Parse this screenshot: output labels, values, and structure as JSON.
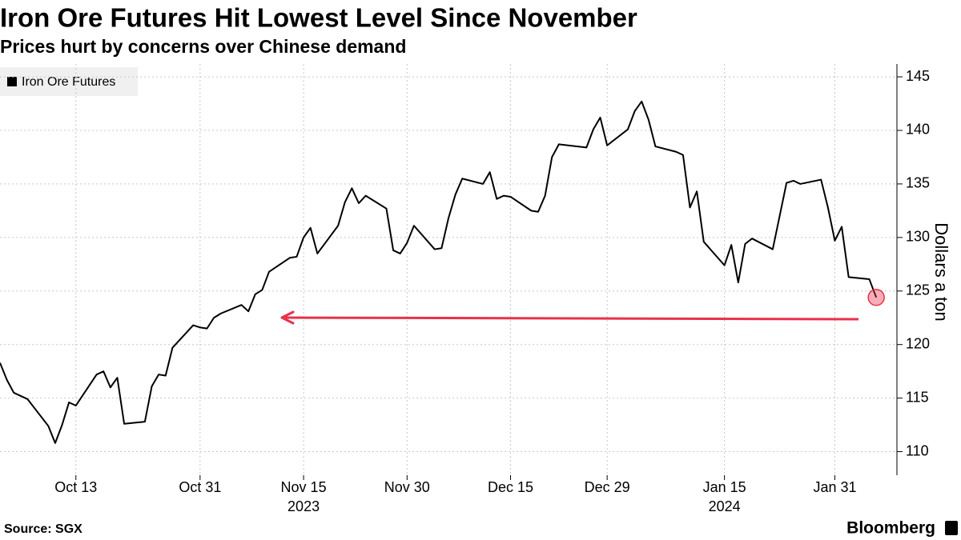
{
  "chart_data": {
    "type": "line",
    "title": "Iron Ore Futures Hit Lowest Level Since November",
    "subtitle": "Prices hurt by concerns over Chinese demand",
    "y_label": "Dollars a ton",
    "source": "Source: SGX",
    "brand": "Bloomberg",
    "x": [
      "2023-10-02",
      "2023-10-03",
      "2023-10-04",
      "2023-10-05",
      "2023-10-06",
      "2023-10-09",
      "2023-10-10",
      "2023-10-11",
      "2023-10-12",
      "2023-10-13",
      "2023-10-16",
      "2023-10-17",
      "2023-10-18",
      "2023-10-19",
      "2023-10-20",
      "2023-10-23",
      "2023-10-24",
      "2023-10-25",
      "2023-10-26",
      "2023-10-27",
      "2023-10-30",
      "2023-10-31",
      "2023-11-01",
      "2023-11-02",
      "2023-11-03",
      "2023-11-06",
      "2023-11-07",
      "2023-11-08",
      "2023-11-09",
      "2023-11-10",
      "2023-11-13",
      "2023-11-14",
      "2023-11-15",
      "2023-11-16",
      "2023-11-17",
      "2023-11-20",
      "2023-11-21",
      "2023-11-22",
      "2023-11-23",
      "2023-11-24",
      "2023-11-27",
      "2023-11-28",
      "2023-11-29",
      "2023-11-30",
      "2023-12-01",
      "2023-12-04",
      "2023-12-05",
      "2023-12-06",
      "2023-12-07",
      "2023-12-08",
      "2023-12-11",
      "2023-12-12",
      "2023-12-13",
      "2023-12-14",
      "2023-12-15",
      "2023-12-18",
      "2023-12-19",
      "2023-12-20",
      "2023-12-21",
      "2023-12-22",
      "2023-12-26",
      "2023-12-27",
      "2023-12-28",
      "2023-12-29",
      "2024-01-01",
      "2024-01-02",
      "2024-01-03",
      "2024-01-04",
      "2024-01-05",
      "2024-01-08",
      "2024-01-09",
      "2024-01-10",
      "2024-01-11",
      "2024-01-12",
      "2024-01-15",
      "2024-01-16",
      "2024-01-17",
      "2024-01-18",
      "2024-01-19",
      "2024-01-22",
      "2024-01-23",
      "2024-01-24",
      "2024-01-25",
      "2024-01-26",
      "2024-01-29",
      "2024-01-30",
      "2024-01-31",
      "2024-02-01",
      "2024-02-02",
      "2024-02-05",
      "2024-02-06"
    ],
    "series": [
      {
        "name": "Iron Ore Futures",
        "color": "#000000",
        "values": [
          118.3,
          116.7,
          115.5,
          115.2,
          114.9,
          112.4,
          110.8,
          112.5,
          114.6,
          114.3,
          117.2,
          117.5,
          116.0,
          116.9,
          112.6,
          112.8,
          116.1,
          117.2,
          117.1,
          119.7,
          121.8,
          121.6,
          121.5,
          122.5,
          122.9,
          123.7,
          123.1,
          124.7,
          125.1,
          126.8,
          128.1,
          128.2,
          130.0,
          130.9,
          128.5,
          131.1,
          133.3,
          134.6,
          133.2,
          133.9,
          132.7,
          128.8,
          128.5,
          129.5,
          131.1,
          128.9,
          129.0,
          131.8,
          134.0,
          135.5,
          135.0,
          136.1,
          133.6,
          133.9,
          133.8,
          132.5,
          132.4,
          133.9,
          137.5,
          138.7,
          138.4,
          140.1,
          141.2,
          138.6,
          140.1,
          141.8,
          142.7,
          141.0,
          138.5,
          138.0,
          137.7,
          132.8,
          134.3,
          129.6,
          127.4,
          129.3,
          125.8,
          129.4,
          129.9,
          128.9,
          132.0,
          135.1,
          135.3,
          135.0,
          135.4,
          132.8,
          129.7,
          131.0,
          126.3,
          126.1,
          124.4
        ]
      }
    ],
    "xlim": [
      "2023-10-02",
      "2024-02-09"
    ],
    "xticks": [
      {
        "value": "2023-10-13",
        "label": "Oct 13"
      },
      {
        "value": "2023-10-31",
        "label": "Oct 31"
      },
      {
        "value": "2023-11-15",
        "label": "Nov 15"
      },
      {
        "value": "2023-11-30",
        "label": "Nov 30"
      },
      {
        "value": "2023-12-15",
        "label": "Dec 15"
      },
      {
        "value": "2023-12-29",
        "label": "Dec 29"
      },
      {
        "value": "2024-01-15",
        "label": "Jan 15"
      },
      {
        "value": "2024-01-31",
        "label": "Jan 31"
      }
    ],
    "year_ticks": [
      {
        "value": "2023-11-15",
        "label": "2023"
      },
      {
        "value": "2024-01-15",
        "label": "2024"
      }
    ],
    "ylim": [
      107.8,
      146.2
    ],
    "yticks": [
      110,
      115,
      120,
      125,
      130,
      135,
      140,
      145
    ],
    "grid": true,
    "highlight_color": "#e8314a"
  }
}
